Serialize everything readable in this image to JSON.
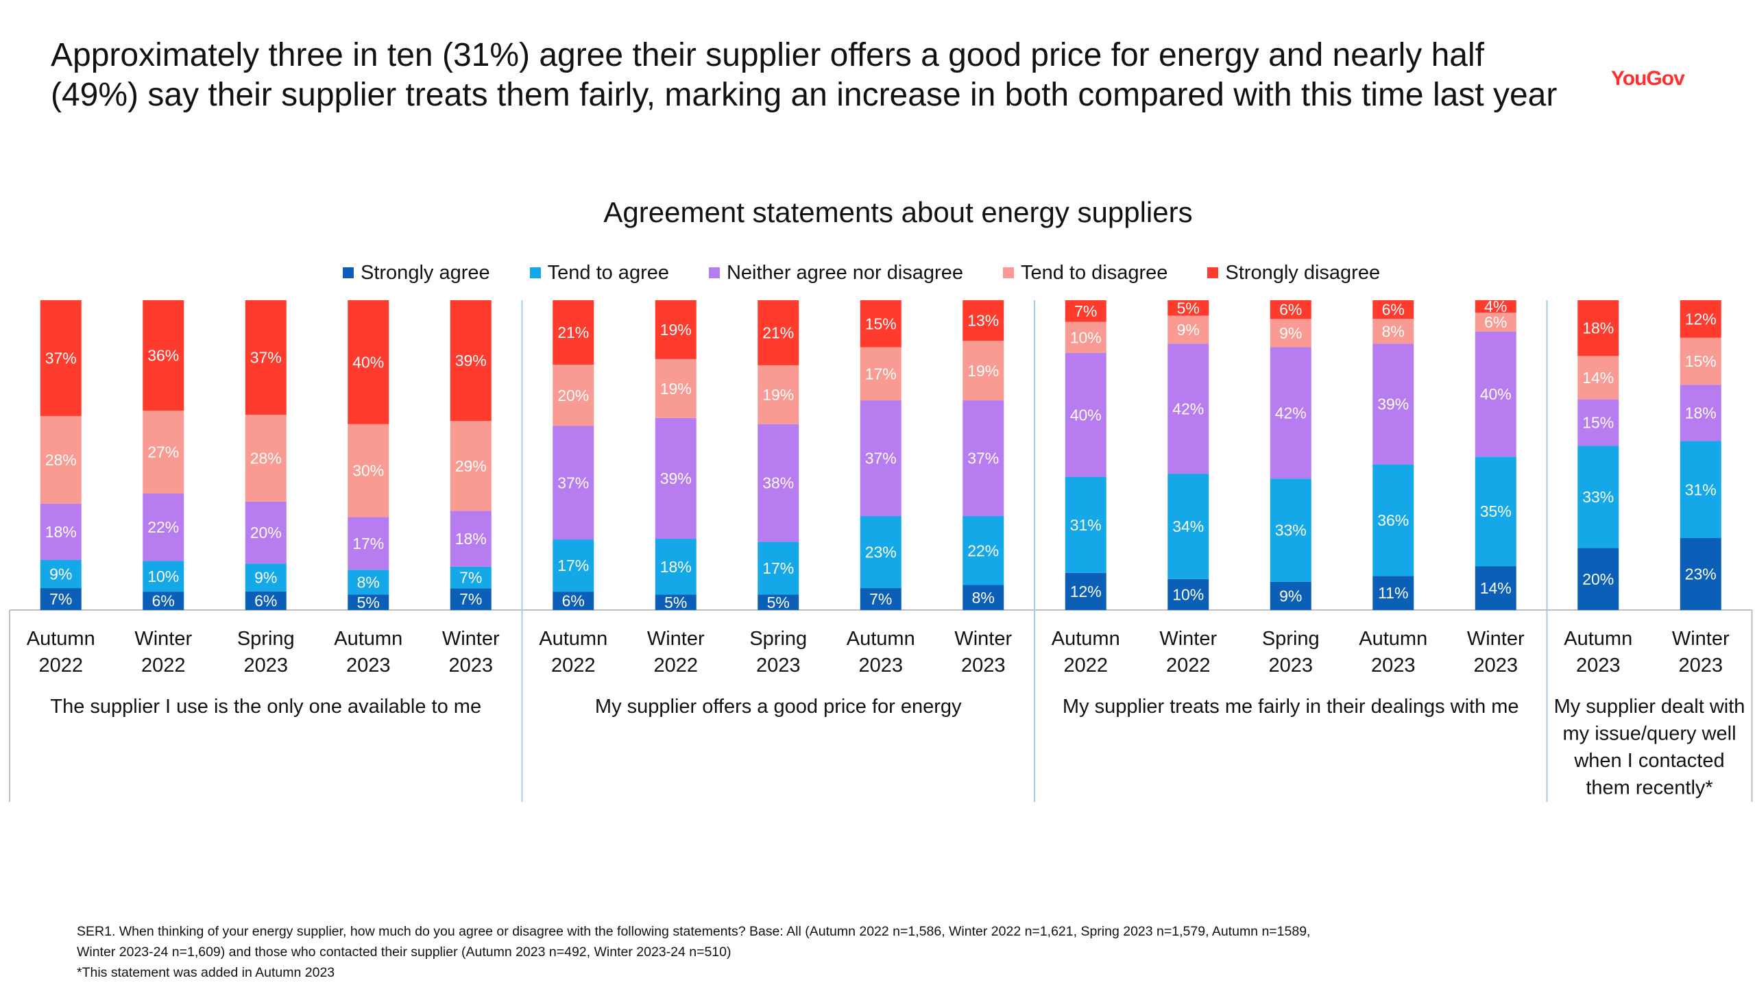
{
  "header": {
    "headline_line1": "Approximately three in ten (31%) agree their supplier offers a good price for energy and nearly half",
    "headline_line2": "(49%) say their supplier treats them fairly, marking an increase in both compared with this time last year",
    "brand": "YouGov"
  },
  "footnote": {
    "line1": "SER1. When thinking of your energy supplier, how much do you agree or disagree with the following statements? Base: All (Autumn 2022 n=1,586, Winter 2022 n=1,621, Spring 2023 n=1,579, Autumn n=1589,",
    "line2": "Winter 2023-24 n=1,609) and those who contacted their supplier (Autumn 2023 n=492, Winter 2023-24 n=510)",
    "line3": "*This statement was added in Autumn 2023"
  },
  "chart_data": {
    "type": "bar",
    "stacked": true,
    "percent_stacked": true,
    "title": "Agreement statements about energy suppliers",
    "legend_position": "top",
    "grid": false,
    "ylim": [
      0,
      100
    ],
    "series": [
      {
        "name": "Strongly agree",
        "color": "#0b5fb6"
      },
      {
        "name": "Tend to agree",
        "color": "#15a8e8"
      },
      {
        "name": "Neither agree nor disagree",
        "color": "#b77cf0"
      },
      {
        "name": "Tend to disagree",
        "color": "#f99b92"
      },
      {
        "name": "Strongly disagree",
        "color": "#ff3b2e"
      }
    ],
    "groups": [
      {
        "label": "The supplier I use is the only one available to me",
        "bars": [
          {
            "line1": "Autumn",
            "line2": "2022",
            "values": [
              7,
              9,
              18,
              28,
              37
            ]
          },
          {
            "line1": "Winter",
            "line2": "2022",
            "values": [
              6,
              10,
              22,
              27,
              36
            ]
          },
          {
            "line1": "Spring",
            "line2": "2023",
            "values": [
              6,
              9,
              20,
              28,
              37
            ]
          },
          {
            "line1": "Autumn",
            "line2": "2023",
            "values": [
              5,
              8,
              17,
              30,
              40
            ]
          },
          {
            "line1": "Winter",
            "line2": "2023",
            "values": [
              7,
              7,
              18,
              29,
              39
            ]
          }
        ]
      },
      {
        "label": "My supplier offers a good price for energy",
        "bars": [
          {
            "line1": "Autumn",
            "line2": "2022",
            "values": [
              6,
              17,
              37,
              20,
              21
            ]
          },
          {
            "line1": "Winter",
            "line2": "2022",
            "values": [
              5,
              18,
              39,
              19,
              19
            ]
          },
          {
            "line1": "Spring",
            "line2": "2023",
            "values": [
              5,
              17,
              38,
              19,
              21
            ]
          },
          {
            "line1": "Autumn",
            "line2": "2023",
            "values": [
              7,
              23,
              37,
              17,
              15
            ]
          },
          {
            "line1": "Winter",
            "line2": "2023",
            "values": [
              8,
              22,
              37,
              19,
              13
            ]
          }
        ]
      },
      {
        "label": "My supplier treats me fairly in their dealings with me",
        "bars": [
          {
            "line1": "Autumn",
            "line2": "2022",
            "values": [
              12,
              31,
              40,
              10,
              7
            ]
          },
          {
            "line1": "Winter",
            "line2": "2022",
            "values": [
              10,
              34,
              42,
              9,
              5
            ]
          },
          {
            "line1": "Spring",
            "line2": "2023",
            "values": [
              9,
              33,
              42,
              9,
              6
            ]
          },
          {
            "line1": "Autumn",
            "line2": "2023",
            "values": [
              11,
              36,
              39,
              8,
              6
            ]
          },
          {
            "line1": "Winter",
            "line2": "2023",
            "values": [
              14,
              35,
              40,
              6,
              4
            ]
          }
        ]
      },
      {
        "label_lines": [
          "My supplier dealt with",
          "my issue/query well",
          "when I contacted",
          "them recently*"
        ],
        "bars": [
          {
            "line1": "Autumn",
            "line2": "2023",
            "values": [
              20,
              33,
              15,
              14,
              18
            ]
          },
          {
            "line1": "Winter",
            "line2": "2023",
            "values": [
              23,
              31,
              18,
              15,
              12
            ]
          }
        ]
      }
    ]
  }
}
